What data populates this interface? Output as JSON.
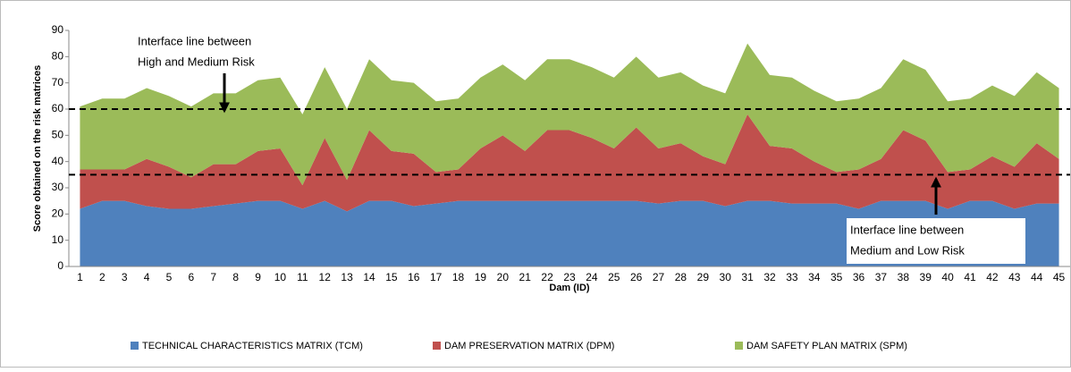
{
  "chart_data": {
    "type": "stacked_area",
    "y_label": "Score obtained  on the risk matrices",
    "x_label": "Dam (ID)",
    "categories": [
      "1",
      "2",
      "3",
      "4",
      "5",
      "6",
      "7",
      "8",
      "9",
      "10",
      "11",
      "12",
      "13",
      "14",
      "15",
      "16",
      "17",
      "18",
      "19",
      "20",
      "21",
      "22",
      "23",
      "24",
      "25",
      "26",
      "27",
      "28",
      "29",
      "30",
      "31",
      "32",
      "33",
      "34",
      "35",
      "36",
      "37",
      "38",
      "39",
      "40",
      "41",
      "42",
      "43",
      "44",
      "45"
    ],
    "series": [
      {
        "name": "TECHNICAL CHARACTERISTICS MATRIX (TCM)",
        "color": "#4f81bd",
        "values": [
          22,
          25,
          25,
          23,
          22,
          22,
          23,
          24,
          25,
          25,
          22,
          25,
          21,
          25,
          25,
          23,
          24,
          25,
          25,
          25,
          25,
          25,
          25,
          25,
          25,
          25,
          24,
          25,
          25,
          23,
          25,
          25,
          24,
          24,
          24,
          22,
          25,
          25,
          25,
          22,
          25,
          25,
          22,
          24,
          24
        ]
      },
      {
        "name": "DAM PRESERVATION MATRIX (DPM)",
        "color": "#c0504d",
        "values": [
          15,
          12,
          12,
          18,
          16,
          12,
          16,
          15,
          19,
          20,
          9,
          24,
          12,
          27,
          19,
          20,
          12,
          12,
          20,
          25,
          19,
          27,
          27,
          24,
          20,
          28,
          21,
          22,
          17,
          16,
          33,
          21,
          21,
          16,
          12,
          15,
          16,
          27,
          23,
          14,
          12,
          17,
          16,
          23,
          17
        ]
      },
      {
        "name": "DAM SAFETY PLAN MATRIX (SPM)",
        "color": "#9bbb59",
        "values": [
          24,
          27,
          27,
          27,
          27,
          27,
          27,
          27,
          27,
          27,
          27,
          27,
          27,
          27,
          27,
          27,
          27,
          27,
          27,
          27,
          27,
          27,
          27,
          27,
          27,
          27,
          27,
          27,
          27,
          27,
          27,
          27,
          27,
          27,
          27,
          27,
          27,
          27,
          27,
          27,
          27,
          27,
          27,
          27,
          27
        ]
      }
    ],
    "ylim": [
      0,
      90
    ],
    "yticks": [
      0,
      10,
      20,
      30,
      40,
      50,
      60,
      70,
      80,
      90
    ],
    "reference_lines": [
      60,
      35
    ],
    "annotations": [
      [
        "Interface line between",
        "High and Medium Risk"
      ],
      [
        "Interface line between",
        "Medium and Low Risk"
      ]
    ],
    "legend": "bottom"
  }
}
